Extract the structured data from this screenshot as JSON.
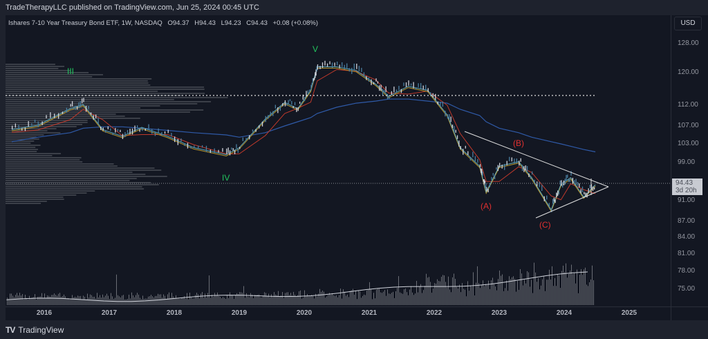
{
  "header": {
    "publisher": "TradeTherapyLLC published on TradingView.com, Jun 25, 2024 00:45 UTC"
  },
  "legend": {
    "symbol": "Ishares 7-10 Year Treasury Bond ETF, 1W, NASDAQ",
    "open": "O94.37",
    "high": "H94.43",
    "low": "L94.23",
    "close": "C94.43",
    "change": "+0.08 (+0.08%)"
  },
  "currency": "USD",
  "price_label": {
    "price": "94.43",
    "countdown": "3d 20h"
  },
  "price_axis": [
    "128.00",
    "120.00",
    "112.00",
    "107.00",
    "103.00",
    "99.00",
    "91.00",
    "87.00",
    "84.00",
    "81.00",
    "78.00",
    "75.00"
  ],
  "time_axis": [
    "2016",
    "2017",
    "2018",
    "2019",
    "2020",
    "2021",
    "2022",
    "2023",
    "2024",
    "2025"
  ],
  "waves": {
    "iii": "III",
    "iv": "IV",
    "v": "V",
    "a": "(A)",
    "b": "(B)",
    "c": "(C)"
  },
  "colors": {
    "up": "#d1d4dc",
    "bull_wave": "#22c55e",
    "bear_wave": "#e03030",
    "ma_long": "#2f5aa8",
    "ma_mid": "#c0392b",
    "ma_short": "#b8962e",
    "ma_fast": "#5fa8b8"
  },
  "footer": {
    "brand": "TradingView"
  },
  "chart_data": {
    "type": "line",
    "x": [
      2015.5,
      2015.9,
      2016.4,
      2016.6,
      2016.9,
      2017.2,
      2017.5,
      2017.9,
      2018.3,
      2018.8,
      2019.0,
      2019.4,
      2019.7,
      2019.9,
      2020.1,
      2020.2,
      2020.5,
      2020.8,
      2021.1,
      2021.3,
      2021.6,
      2021.9,
      2022.2,
      2022.4,
      2022.7,
      2022.8,
      2023.0,
      2023.3,
      2023.5,
      2023.8,
      2023.95,
      2024.1,
      2024.3,
      2024.48
    ],
    "series": [
      {
        "name": "price",
        "values": [
          106.5,
          107.5,
          111.5,
          112.5,
          106.5,
          105,
          107,
          105,
          102.5,
          101,
          102.5,
          109,
          113,
          111.5,
          116,
          122,
          122,
          121,
          117.5,
          114.5,
          117,
          116,
          110,
          102.5,
          98.5,
          93,
          98.5,
          99.5,
          96,
          89.5,
          94.5,
          96,
          92,
          94.43
        ]
      },
      {
        "name": "ma_long",
        "values": [
          103.5,
          104.5,
          105.5,
          106.5,
          106.8,
          106.8,
          106.5,
          106,
          105.5,
          105,
          104.5,
          105.5,
          107,
          108,
          109,
          110,
          111.5,
          112.5,
          113,
          113.5,
          113.5,
          113,
          112.5,
          111,
          109.5,
          108,
          106.5,
          105.5,
          104.5,
          103.5,
          103,
          102.5,
          101.8,
          101.3
        ]
      }
    ],
    "ylim": [
      73,
      130
    ]
  }
}
